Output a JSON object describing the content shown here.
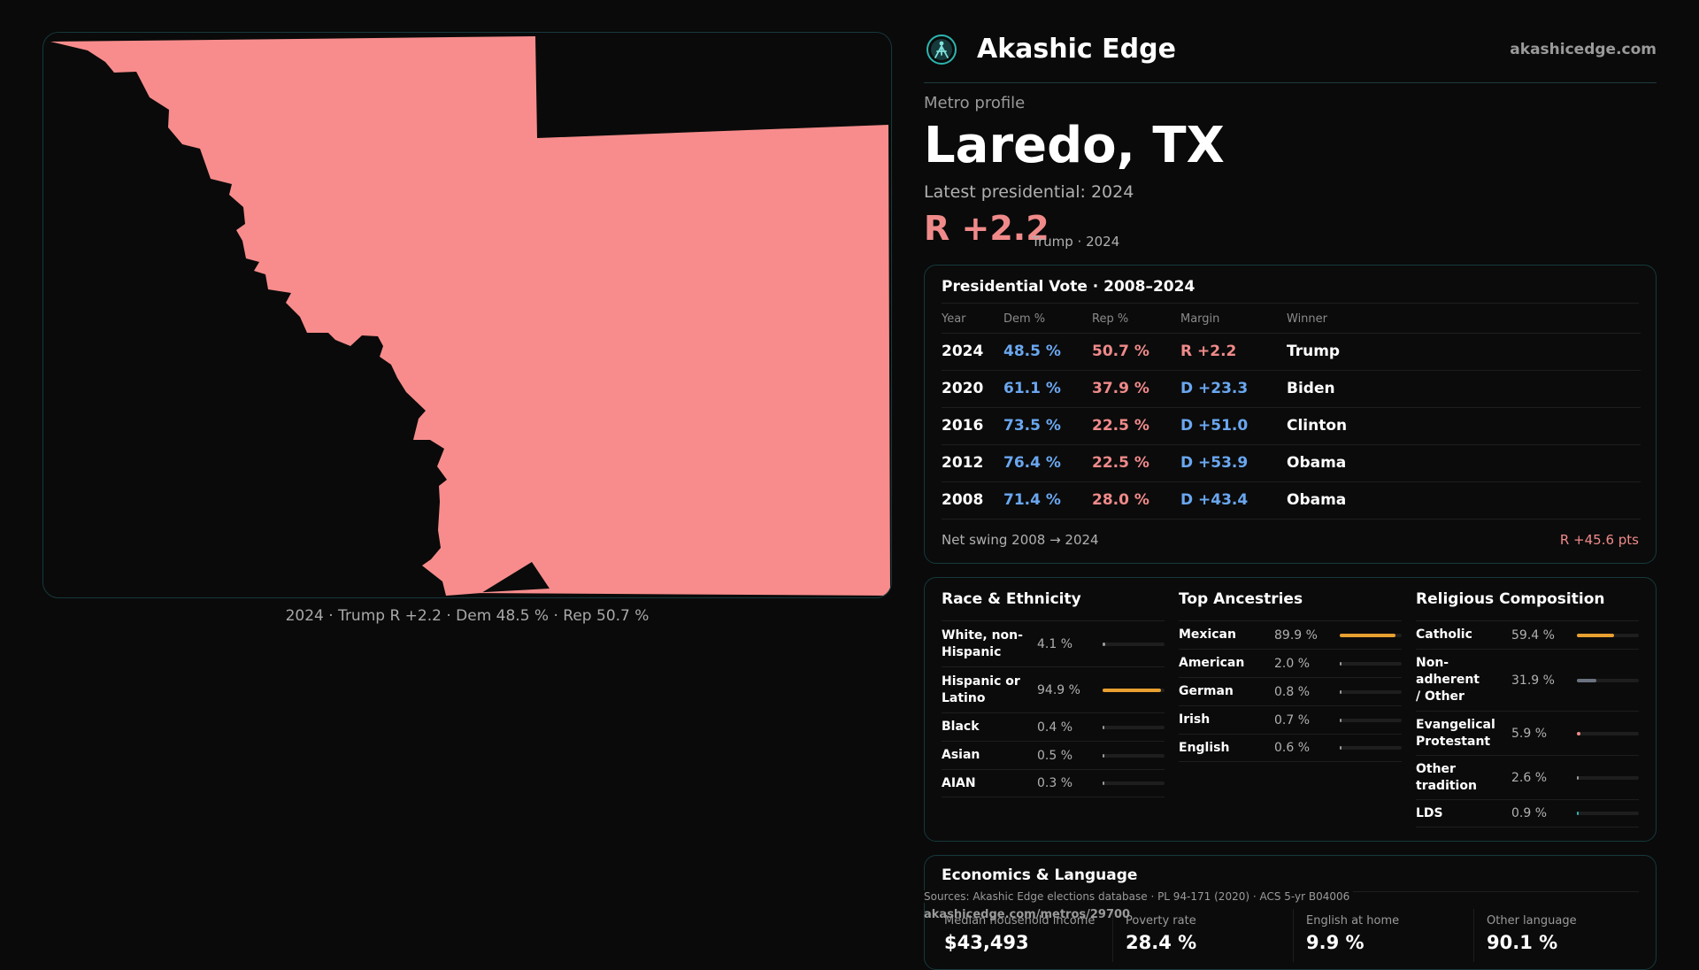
{
  "brand": {
    "name": "Akashic Edge",
    "url": "akashicedge.com"
  },
  "map": {
    "fill_color": "#f88c8c",
    "caption": "2024 · Trump R +2.2 · Dem 48.5 % · Rep 50.7 %"
  },
  "profile": {
    "kicker": "Metro profile",
    "title": "Laredo, TX",
    "latest_label": "Latest presidential: 2024",
    "margin": "R +2.2",
    "margin_sub": "Trump · 2024"
  },
  "vote_card": {
    "title": "Presidential Vote · 2008–2024",
    "columns": [
      "Year",
      "Dem %",
      "Rep %",
      "Margin",
      "Winner"
    ],
    "rows": [
      {
        "year": "2024",
        "dem": "48.5 %",
        "rep": "50.7 %",
        "margin": "R +2.2",
        "party": "r",
        "winner": "Trump"
      },
      {
        "year": "2020",
        "dem": "61.1 %",
        "rep": "37.9 %",
        "margin": "D +23.3",
        "party": "d",
        "winner": "Biden"
      },
      {
        "year": "2016",
        "dem": "73.5 %",
        "rep": "22.5 %",
        "margin": "D +51.0",
        "party": "d",
        "winner": "Clinton"
      },
      {
        "year": "2012",
        "dem": "76.4 %",
        "rep": "22.5 %",
        "margin": "D +53.9",
        "party": "d",
        "winner": "Obama"
      },
      {
        "year": "2008",
        "dem": "71.4 %",
        "rep": "28.0 %",
        "margin": "D +43.4",
        "party": "d",
        "winner": "Obama"
      }
    ],
    "swing_label": "Net swing 2008 → 2024",
    "swing_value": "R +45.6 pts"
  },
  "race": {
    "title": "Race & Ethnicity",
    "rows": [
      {
        "label": "White, non-Hispanic",
        "value": "4.1 %",
        "pct": 0.041
      },
      {
        "label": "Hispanic or Latino",
        "value": "94.9 %",
        "pct": 0.949
      },
      {
        "label": "Black",
        "value": "0.4 %",
        "pct": 0.004
      },
      {
        "label": "Asian",
        "value": "0.5 %",
        "pct": 0.005
      },
      {
        "label": "AIAN",
        "value": "0.3 %",
        "pct": 0.003
      }
    ]
  },
  "ancestry": {
    "title": "Top Ancestries",
    "rows": [
      {
        "label": "Mexican",
        "value": "89.9 %",
        "pct": 0.899
      },
      {
        "label": "American",
        "value": "2.0 %",
        "pct": 0.02
      },
      {
        "label": "German",
        "value": "0.8 %",
        "pct": 0.008
      },
      {
        "label": "Irish",
        "value": "0.7 %",
        "pct": 0.007
      },
      {
        "label": "English",
        "value": "0.6 %",
        "pct": 0.006
      }
    ]
  },
  "religion": {
    "title": "Religious Composition",
    "rows": [
      {
        "label": "Catholic",
        "value": "59.4 %",
        "pct": 0.594,
        "color": "#e8a030"
      },
      {
        "label": "Non-adherent / Other",
        "value": "31.9 %",
        "pct": 0.319,
        "color": "#6b7280"
      },
      {
        "label": "Evangelical Protestant",
        "value": "5.9 %",
        "pct": 0.059,
        "color": "#f08a8a"
      },
      {
        "label": "Other tradition",
        "value": "2.6 %",
        "pct": 0.026,
        "color": "#9a9a9a"
      },
      {
        "label": "LDS",
        "value": "0.9 %",
        "pct": 0.009,
        "color": "#2cb5b0"
      }
    ]
  },
  "economics": {
    "title": "Economics & Language",
    "stats": [
      {
        "label": "Median household income",
        "value": "$43,493"
      },
      {
        "label": "Poverty rate",
        "value": "28.4 %"
      },
      {
        "label": "English at home",
        "value": "9.9 %"
      },
      {
        "label": "Other language",
        "value": "90.1 %"
      }
    ]
  },
  "footer": {
    "sources": "Sources: Akashic Edge elections database · PL 94-171 (2020) · ACS 5-yr B04006",
    "page_url": "akashicedge.com/metros/29700"
  },
  "colors": {
    "dem": "#6aa7f0",
    "rep": "#f08a8a",
    "bar_accent": "#e8a030"
  }
}
